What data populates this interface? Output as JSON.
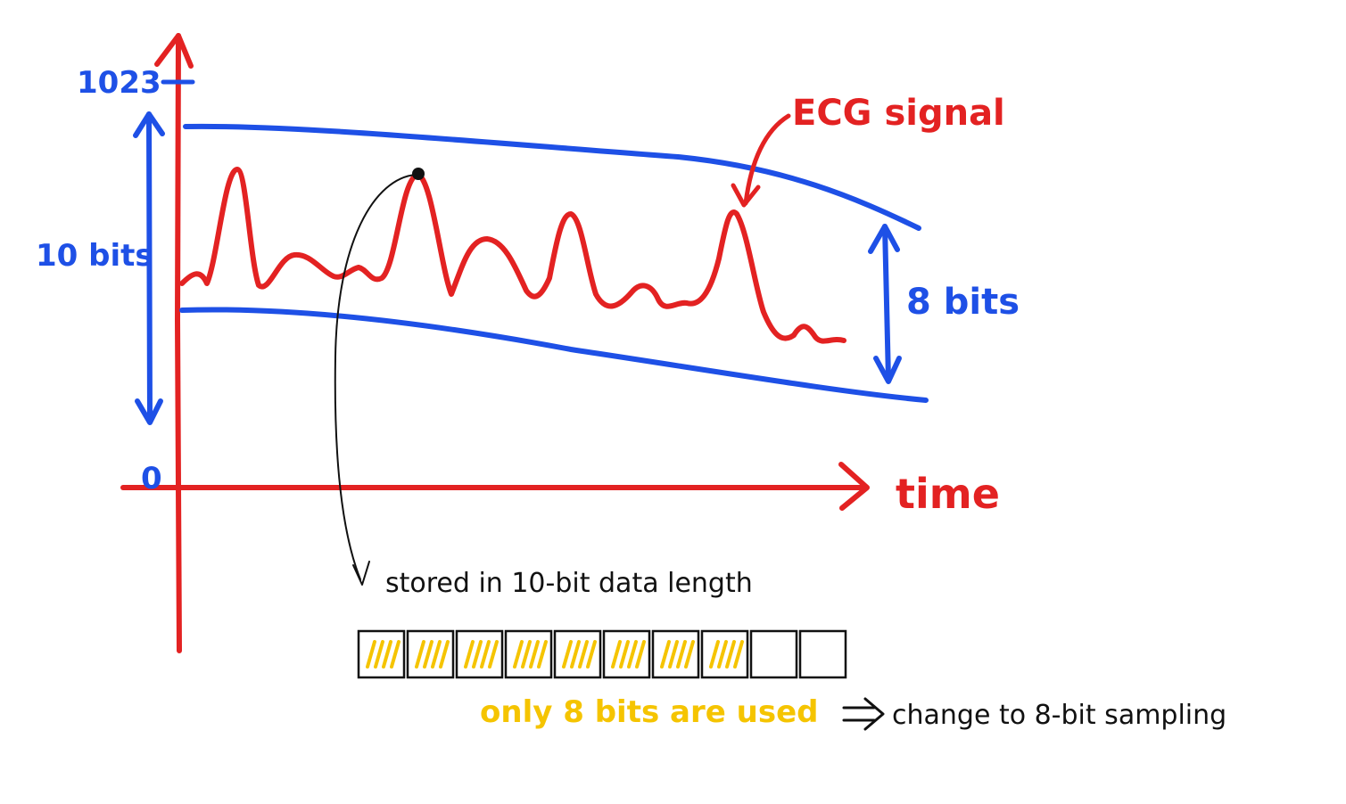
{
  "labels": {
    "y_max": "1023",
    "y_min": "0",
    "range_10": "10 bits",
    "range_8": "8 bits",
    "x_axis": "time",
    "signal": "ECG signal",
    "stored": "stored in 10-bit data length",
    "used": "only 8 bits are used",
    "implies": "⇒",
    "change": "change to 8-bit sampling"
  },
  "bits": {
    "total": 10,
    "used": 8
  },
  "colors": {
    "axis": "#e32222",
    "signal": "#e32222",
    "range": "#1e50e6",
    "used_bit": "#f5c400",
    "ink": "#111111"
  }
}
